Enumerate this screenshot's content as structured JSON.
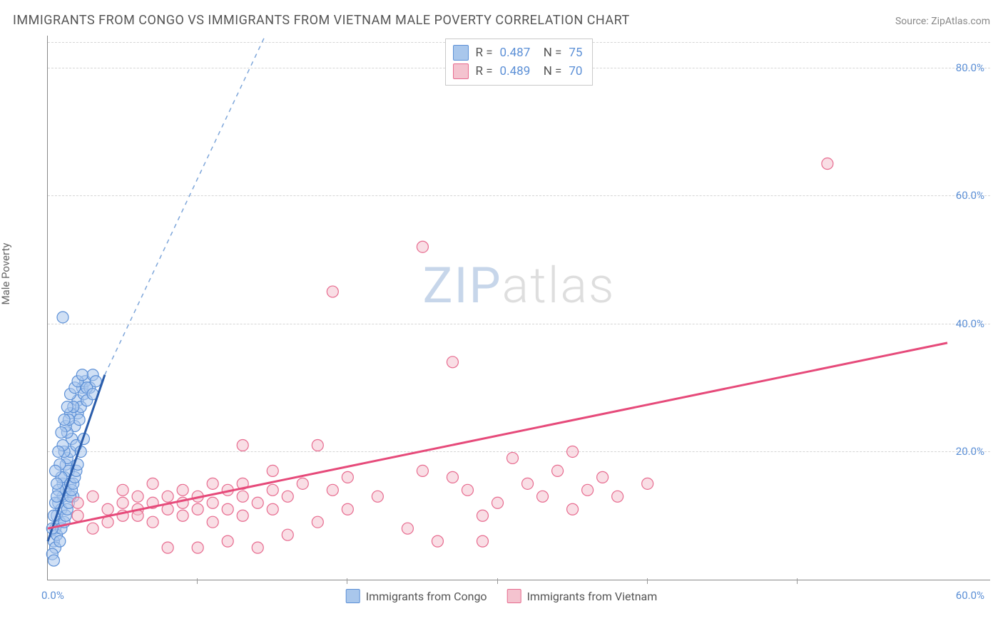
{
  "title": "IMMIGRANTS FROM CONGO VS IMMIGRANTS FROM VIETNAM MALE POVERTY CORRELATION CHART",
  "source": "Source: ZipAtlas.com",
  "ylabel": "Male Poverty",
  "watermark": {
    "a": "ZIP",
    "b": "atlas"
  },
  "chart": {
    "type": "scatter",
    "xlim": [
      0,
      60
    ],
    "ylim": [
      0,
      85
    ],
    "yticks": [
      20,
      40,
      60,
      80
    ],
    "ytick_labels": [
      "20.0%",
      "40.0%",
      "60.0%",
      "80.0%"
    ],
    "xtick_positions": [
      10,
      20,
      30,
      40,
      50
    ],
    "x_origin_label": "0.0%",
    "x_max_label": "60.0%",
    "background": "#ffffff",
    "grid_color": "#d5d5d5",
    "axis_color": "#888888",
    "tick_label_color": "#5b8fd6",
    "marker_radius": 8,
    "marker_opacity": 0.55,
    "series": [
      {
        "name": "Immigrants from Congo",
        "fill": "#a9c7ec",
        "stroke": "#5b8fd6",
        "line_color": "#2a5caa",
        "line_width": 3,
        "dash_color": "#7ea6da",
        "R": "0.487",
        "N": "75",
        "trend": {
          "x1": 0,
          "y1": 6,
          "x2": 3.8,
          "y2": 32,
          "dash_x2": 14.5,
          "dash_y2": 85
        },
        "points": [
          [
            0.4,
            6
          ],
          [
            0.5,
            8
          ],
          [
            0.6,
            10
          ],
          [
            0.7,
            12
          ],
          [
            0.8,
            9
          ],
          [
            0.9,
            11
          ],
          [
            1.0,
            13
          ],
          [
            1.0,
            15
          ],
          [
            1.1,
            16
          ],
          [
            1.2,
            18
          ],
          [
            1.2,
            14
          ],
          [
            1.3,
            19
          ],
          [
            1.4,
            17
          ],
          [
            1.5,
            20
          ],
          [
            1.5,
            15
          ],
          [
            1.6,
            22
          ],
          [
            1.7,
            13
          ],
          [
            1.8,
            24
          ],
          [
            1.9,
            21
          ],
          [
            2.0,
            26
          ],
          [
            2.0,
            28
          ],
          [
            2.1,
            25
          ],
          [
            2.2,
            27
          ],
          [
            2.3,
            30
          ],
          [
            2.4,
            29
          ],
          [
            2.5,
            31
          ],
          [
            2.6,
            28
          ],
          [
            2.8,
            30
          ],
          [
            3.0,
            32
          ],
          [
            1.0,
            41
          ],
          [
            0.5,
            5
          ],
          [
            0.3,
            4
          ],
          [
            0.6,
            7
          ],
          [
            0.4,
            3
          ],
          [
            0.8,
            6
          ],
          [
            0.9,
            8
          ],
          [
            1.1,
            9
          ],
          [
            1.2,
            10
          ],
          [
            1.3,
            11
          ],
          [
            1.4,
            12
          ],
          [
            1.5,
            13
          ],
          [
            1.6,
            14
          ],
          [
            1.7,
            15
          ],
          [
            1.8,
            16
          ],
          [
            1.9,
            17
          ],
          [
            2.0,
            18
          ],
          [
            2.2,
            20
          ],
          [
            2.4,
            22
          ],
          [
            0.7,
            14
          ],
          [
            0.9,
            16
          ],
          [
            1.1,
            20
          ],
          [
            1.3,
            23
          ],
          [
            1.5,
            26
          ],
          [
            1.7,
            27
          ],
          [
            0.5,
            12
          ],
          [
            0.6,
            15
          ],
          [
            0.8,
            18
          ],
          [
            1.0,
            21
          ],
          [
            1.2,
            24
          ],
          [
            1.4,
            25
          ],
          [
            0.3,
            8
          ],
          [
            0.4,
            10
          ],
          [
            0.6,
            13
          ],
          [
            3.2,
            31
          ],
          [
            0.5,
            17
          ],
          [
            0.7,
            20
          ],
          [
            0.9,
            23
          ],
          [
            1.1,
            25
          ],
          [
            1.3,
            27
          ],
          [
            1.5,
            29
          ],
          [
            1.8,
            30
          ],
          [
            2.0,
            31
          ],
          [
            2.3,
            32
          ],
          [
            2.6,
            30
          ],
          [
            3.0,
            29
          ]
        ]
      },
      {
        "name": "Immigrants from Vietnam",
        "fill": "#f4c3cf",
        "stroke": "#e76b8f",
        "line_color": "#e64a7a",
        "line_width": 3,
        "R": "0.489",
        "N": "70",
        "trend": {
          "x1": 0,
          "y1": 8,
          "x2": 60,
          "y2": 37
        },
        "points": [
          [
            2,
            12
          ],
          [
            3,
            13
          ],
          [
            4,
            11
          ],
          [
            5,
            12
          ],
          [
            5,
            14
          ],
          [
            6,
            11
          ],
          [
            6,
            13
          ],
          [
            7,
            12
          ],
          [
            7,
            15
          ],
          [
            8,
            11
          ],
          [
            8,
            13
          ],
          [
            9,
            12
          ],
          [
            9,
            14
          ],
          [
            10,
            11
          ],
          [
            10,
            13
          ],
          [
            11,
            12
          ],
          [
            11,
            15
          ],
          [
            12,
            14
          ],
          [
            12,
            11
          ],
          [
            13,
            13
          ],
          [
            13,
            15
          ],
          [
            14,
            12
          ],
          [
            15,
            14
          ],
          [
            15,
            17
          ],
          [
            16,
            13
          ],
          [
            17,
            15
          ],
          [
            18,
            21
          ],
          [
            19,
            14
          ],
          [
            20,
            16
          ],
          [
            13,
            21
          ],
          [
            8,
            5
          ],
          [
            10,
            5
          ],
          [
            12,
            6
          ],
          [
            14,
            5
          ],
          [
            16,
            7
          ],
          [
            18,
            9
          ],
          [
            20,
            11
          ],
          [
            22,
            13
          ],
          [
            24,
            8
          ],
          [
            25,
            17
          ],
          [
            26,
            6
          ],
          [
            27,
            16
          ],
          [
            28,
            14
          ],
          [
            29,
            10
          ],
          [
            30,
            12
          ],
          [
            27,
            34
          ],
          [
            25,
            52
          ],
          [
            19,
            45
          ],
          [
            31,
            19
          ],
          [
            32,
            15
          ],
          [
            33,
            13
          ],
          [
            34,
            17
          ],
          [
            35,
            11
          ],
          [
            35,
            20
          ],
          [
            36,
            14
          ],
          [
            37,
            16
          ],
          [
            29,
            6
          ],
          [
            40,
            15
          ],
          [
            38,
            13
          ],
          [
            52,
            65
          ],
          [
            6,
            10
          ],
          [
            4,
            9
          ],
          [
            3,
            8
          ],
          [
            5,
            10
          ],
          [
            7,
            9
          ],
          [
            9,
            10
          ],
          [
            11,
            9
          ],
          [
            13,
            10
          ],
          [
            15,
            11
          ],
          [
            2,
            10
          ]
        ]
      }
    ]
  },
  "bottom_legend": [
    {
      "label": "Immigrants from Congo",
      "fill": "#a9c7ec",
      "stroke": "#5b8fd6"
    },
    {
      "label": "Immigrants from Vietnam",
      "fill": "#f4c3cf",
      "stroke": "#e76b8f"
    }
  ]
}
